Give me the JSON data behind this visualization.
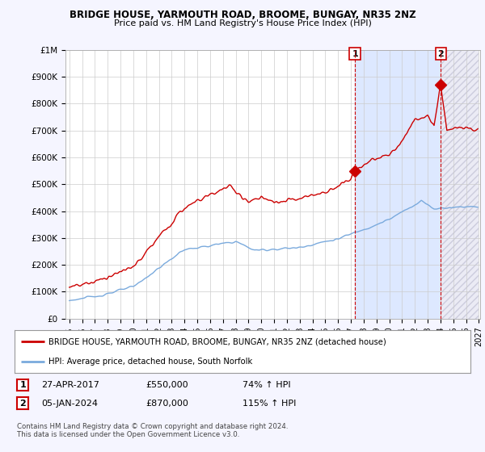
{
  "title": "BRIDGE HOUSE, YARMOUTH ROAD, BROOME, BUNGAY, NR35 2NZ",
  "subtitle": "Price paid vs. HM Land Registry's House Price Index (HPI)",
  "legend_line1": "BRIDGE HOUSE, YARMOUTH ROAD, BROOME, BUNGAY, NR35 2NZ (detached house)",
  "legend_line2": "HPI: Average price, detached house, South Norfolk",
  "annotation1_label": "1",
  "annotation1_date": "27-APR-2017",
  "annotation1_price": "£550,000",
  "annotation1_hpi": "74% ↑ HPI",
  "annotation2_label": "2",
  "annotation2_date": "05-JAN-2024",
  "annotation2_price": "£870,000",
  "annotation2_hpi": "115% ↑ HPI",
  "footer": "Contains HM Land Registry data © Crown copyright and database right 2024.\nThis data is licensed under the Open Government Licence v3.0.",
  "red_color": "#cc0000",
  "blue_color": "#7aaadd",
  "background_color": "#f5f5ff",
  "plot_bg": "#ffffff",
  "grid_color": "#cccccc",
  "highlight_color": "#dde8ff",
  "hatch_color": "#ccccdd",
  "ylim": [
    0,
    1000000
  ],
  "yticks": [
    0,
    100000,
    200000,
    300000,
    400000,
    500000,
    600000,
    700000,
    800000,
    900000,
    1000000
  ],
  "ytick_labels": [
    "£0",
    "£100K",
    "£200K",
    "£300K",
    "£400K",
    "£500K",
    "£600K",
    "£700K",
    "£800K",
    "£900K",
    "£1M"
  ],
  "sale1_x": 2017.32,
  "sale1_y": 550000,
  "sale2_x": 2024.02,
  "sale2_y": 870000,
  "vline1_x": 2017.32,
  "vline2_x": 2024.02,
  "xmin": 1995.0,
  "xmax": 2027.0
}
